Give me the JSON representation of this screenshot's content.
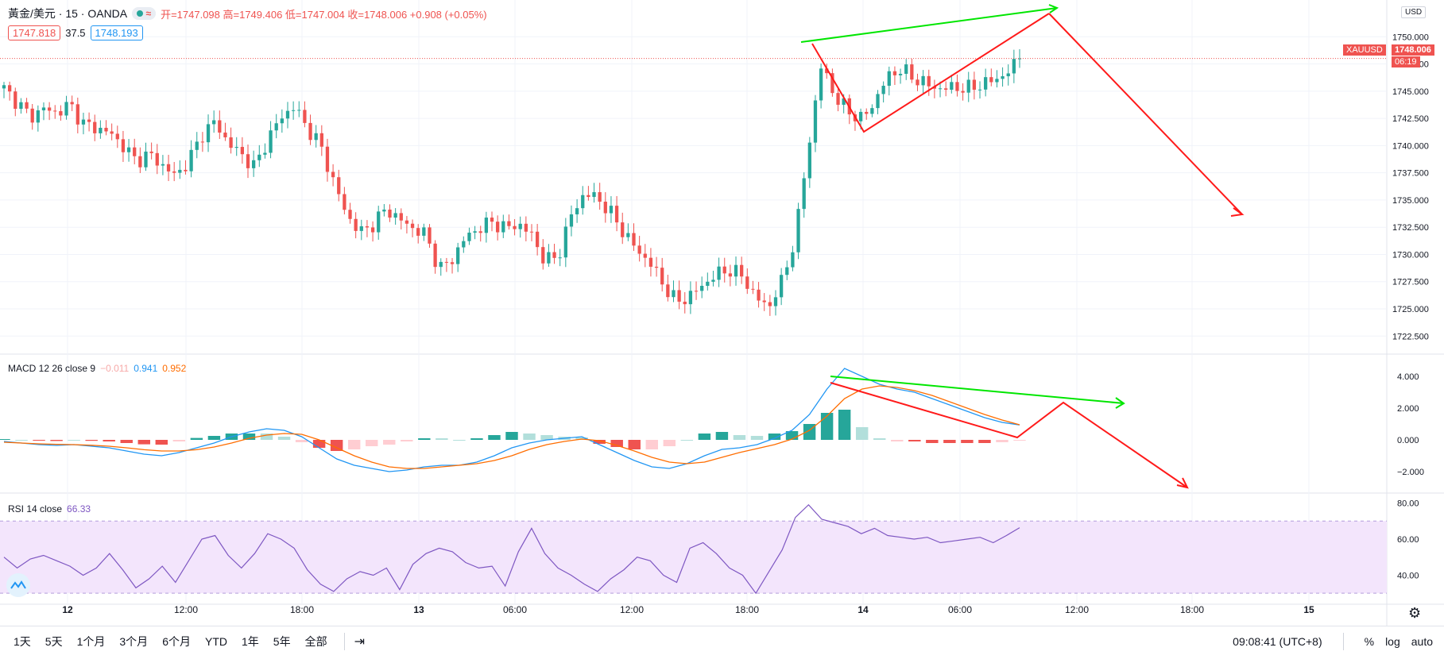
{
  "header": {
    "symbol_title": "黃金/美元 · 15 · OANDA",
    "approx_glyph": "≈",
    "ohlc": "开=1747.098 高=1749.406 低=1747.004 收=1748.006 +0.908 (+0.05%)",
    "bid": "1747.818",
    "spread": "37.5",
    "ask": "1748.193"
  },
  "price_axis": {
    "currency": "USD",
    "symbol_label": "XAUUSD",
    "last_price": "1748.006",
    "countdown": "06:19"
  },
  "macd_legend": {
    "title": "MACD 12 26 close 9",
    "hist_value": "−0.011",
    "macd_value": "0.941",
    "signal_value": "0.952"
  },
  "rsi_legend": {
    "title": "RSI 14 close",
    "value": "66.33"
  },
  "bottom_bar": {
    "timeframes": [
      "1天",
      "5天",
      "1个月",
      "3个月",
      "6个月",
      "YTD",
      "1年",
      "5年",
      "全部"
    ],
    "clock": "09:08:41 (UTC+8)",
    "percent_label": "%",
    "log_label": "log",
    "auto_label": "auto"
  },
  "colors": {
    "up": "#26a69a",
    "down": "#ef5350",
    "macd_line": "#2196f3",
    "signal_line": "#ff6d00",
    "rsi_line": "#7e57c2",
    "rsi_band": "#f3e5fc",
    "trend_green": "#00e600",
    "trend_red": "#ff1a1a"
  },
  "chart_data": [
    {
      "type": "candlestick",
      "title": "黃金/美元 · 15 · OANDA",
      "ylim": [
        1721.5,
        1752.5
      ],
      "y_ticks": [
        "1750.000",
        "1747.500",
        "1745.000",
        "1742.500",
        "1740.000",
        "1737.500",
        "1735.000",
        "1732.500",
        "1730.000",
        "1727.500",
        "1725.000",
        "1722.500"
      ],
      "x_tick_labels": [
        "12",
        "12:00",
        "18:00",
        "13",
        "06:00",
        "12:00",
        "18:00",
        "14",
        "06:00",
        "12:00",
        "18:00",
        "15"
      ],
      "close_path": [
        1745.2,
        1744.0,
        1742.6,
        1743.4,
        1743.0,
        1743.8,
        1742.0,
        1741.6,
        1741.2,
        1740.0,
        1738.6,
        1739.2,
        1738.2,
        1737.2,
        1738.6,
        1741.0,
        1742.2,
        1740.2,
        1739.2,
        1738.0,
        1740.6,
        1742.6,
        1743.6,
        1741.6,
        1740.0,
        1736.6,
        1733.6,
        1732.0,
        1732.8,
        1734.2,
        1733.2,
        1732.4,
        1731.8,
        1728.6,
        1729.6,
        1731.6,
        1732.4,
        1733.0,
        1732.4,
        1732.8,
        1731.8,
        1729.4,
        1729.8,
        1733.6,
        1735.6,
        1735.2,
        1733.8,
        1732.0,
        1730.4,
        1729.2,
        1727.2,
        1725.6,
        1726.2,
        1727.2,
        1728.2,
        1728.6,
        1728.0,
        1726.0,
        1725.2,
        1727.6,
        1731.6,
        1740.0,
        1747.6,
        1744.4,
        1743.2,
        1742.4,
        1744.0,
        1746.4,
        1747.0,
        1746.2,
        1745.6,
        1745.2,
        1745.4,
        1745.2,
        1745.6,
        1746.0,
        1746.6,
        1748.006
      ],
      "last_price": 1748.006
    },
    {
      "type": "line",
      "title": "MACD 12 26 close 9",
      "ylim": [
        -2.8,
        4.8
      ],
      "y_ticks": [
        "4.000",
        "2.000",
        "0.000",
        "−2.000"
      ],
      "macd": [
        -0.1,
        -0.2,
        -0.3,
        -0.35,
        -0.3,
        -0.4,
        -0.5,
        -0.7,
        -0.9,
        -1.0,
        -0.8,
        -0.5,
        -0.2,
        0.2,
        0.5,
        0.7,
        0.6,
        0.2,
        -0.5,
        -1.2,
        -1.6,
        -1.8,
        -2.0,
        -1.9,
        -1.7,
        -1.6,
        -1.6,
        -1.4,
        -1.0,
        -0.5,
        -0.2,
        0.0,
        0.1,
        0.2,
        -0.3,
        -0.8,
        -1.3,
        -1.7,
        -1.8,
        -1.5,
        -1.0,
        -0.6,
        -0.5,
        -0.3,
        0.1,
        0.6,
        1.6,
        3.2,
        4.5,
        4.0,
        3.5,
        3.2,
        3.0,
        2.6,
        2.2,
        1.8,
        1.4,
        1.1,
        0.94
      ],
      "signal": [
        -0.15,
        -0.2,
        -0.25,
        -0.28,
        -0.3,
        -0.34,
        -0.4,
        -0.5,
        -0.62,
        -0.7,
        -0.7,
        -0.62,
        -0.45,
        -0.2,
        0.1,
        0.3,
        0.4,
        0.35,
        0.0,
        -0.5,
        -1.0,
        -1.4,
        -1.7,
        -1.8,
        -1.8,
        -1.7,
        -1.6,
        -1.5,
        -1.3,
        -1.0,
        -0.6,
        -0.3,
        -0.1,
        0.05,
        -0.05,
        -0.35,
        -0.7,
        -1.1,
        -1.4,
        -1.5,
        -1.4,
        -1.1,
        -0.8,
        -0.55,
        -0.3,
        0.05,
        0.6,
        1.5,
        2.6,
        3.2,
        3.4,
        3.3,
        3.1,
        2.8,
        2.4,
        2.0,
        1.6,
        1.25,
        0.95
      ],
      "legend": [
        "MACD 12 26 close 9"
      ]
    },
    {
      "type": "line",
      "title": "RSI 14 close",
      "ylim": [
        27,
        82
      ],
      "y_ticks": [
        "80.00",
        "60.00",
        "40.00"
      ],
      "band": [
        30,
        70
      ],
      "values": [
        50,
        44,
        49,
        51,
        48,
        45,
        40,
        44,
        52,
        43,
        33,
        38,
        45,
        36,
        48,
        60,
        62,
        51,
        44,
        52,
        63,
        60,
        55,
        43,
        35,
        31,
        38,
        42,
        40,
        44,
        32,
        46,
        52,
        55,
        53,
        47,
        44,
        45,
        34,
        53,
        66,
        52,
        44,
        40,
        35,
        31,
        38,
        43,
        50,
        48,
        40,
        36,
        55,
        58,
        52,
        44,
        40,
        30,
        42,
        54,
        72,
        79,
        71,
        69,
        67,
        63,
        66,
        62,
        61,
        60,
        61,
        58,
        59,
        60,
        61,
        58,
        62,
        66.33
      ],
      "legend": [
        "RSI 14 close"
      ]
    }
  ]
}
